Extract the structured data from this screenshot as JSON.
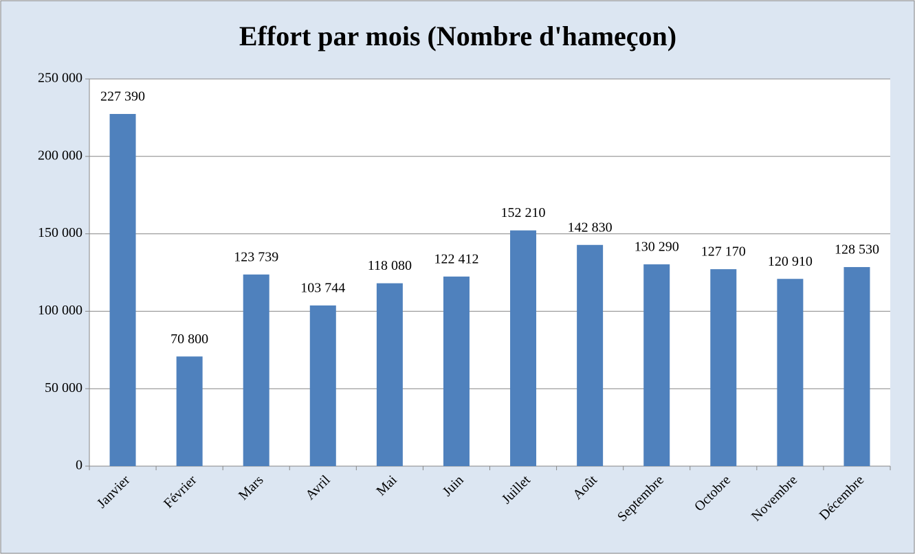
{
  "chart_data": {
    "type": "bar",
    "title": "Effort par mois (Nombre d'hameçon)",
    "categories": [
      "Janvier",
      "Février",
      "Mars",
      "Avril",
      "Mai",
      "Juin",
      "Juillet",
      "Août",
      "Septembre",
      "Octobre",
      "Novembre",
      "Décembre"
    ],
    "values": [
      227390,
      70800,
      123739,
      103744,
      118080,
      122412,
      152210,
      142830,
      130290,
      127170,
      120910,
      128530
    ],
    "value_labels": [
      "227 390",
      "70 800",
      "123 739",
      "103 744",
      "118 080",
      "122 412",
      "152 210",
      "142 830",
      "130 290",
      "127 170",
      "120 910",
      "128 530"
    ],
    "color": "#4f81bd",
    "ylim": [
      0,
      250000
    ],
    "yticks": [
      0,
      {
        "value": 50000,
        "label": "50 000"
      },
      {
        "value": 100000,
        "label": "100 000"
      },
      {
        "value": 150000,
        "label": "150 000"
      },
      {
        "value": 200000,
        "label": "200 000"
      },
      {
        "value": 250000,
        "label": "250 000"
      }
    ],
    "grid": true
  }
}
